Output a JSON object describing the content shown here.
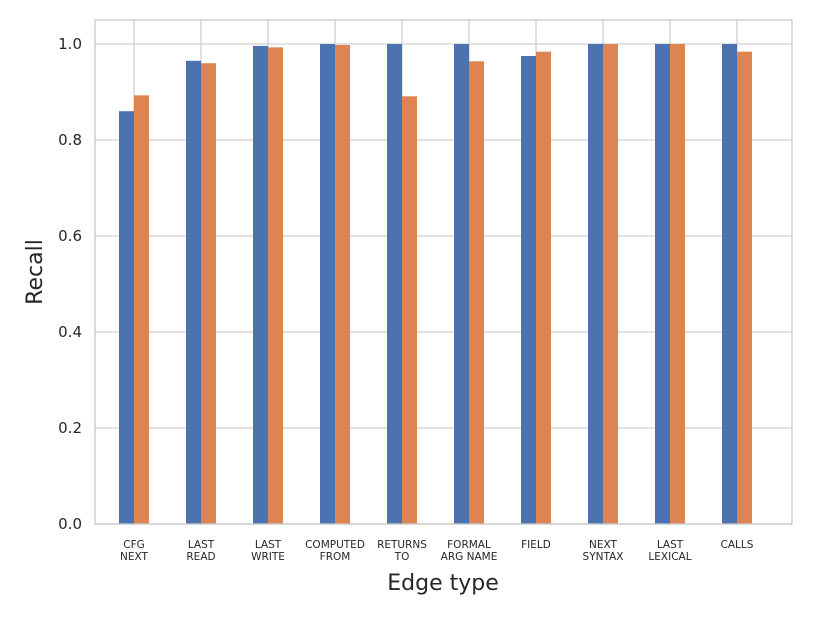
{
  "chart_data": {
    "type": "bar",
    "title": "",
    "xlabel": "Edge type",
    "ylabel": "Recall",
    "ylim": [
      0,
      1.05
    ],
    "yticks": [
      0.0,
      0.2,
      0.4,
      0.6,
      0.8,
      1.0
    ],
    "ytick_labels": [
      "0.0",
      "0.2",
      "0.4",
      "0.6",
      "0.8",
      "1.0"
    ],
    "grid": true,
    "legend": "none",
    "categories": [
      [
        "CFG",
        "NEXT"
      ],
      [
        "LAST",
        "READ"
      ],
      [
        "LAST",
        "WRITE"
      ],
      [
        "COMPUTED",
        "FROM"
      ],
      [
        "RETURNS",
        "TO"
      ],
      [
        "FORMAL",
        "ARG NAME"
      ],
      [
        "FIELD"
      ],
      [
        "NEXT",
        "SYNTAX"
      ],
      [
        "LAST",
        "LEXICAL"
      ],
      [
        "CALLS"
      ]
    ],
    "series": [
      {
        "color": "#4c72b0",
        "values": [
          0.86,
          0.965,
          0.996,
          1.0,
          1.0,
          1.0,
          0.975,
          1.0,
          1.0,
          1.0
        ]
      },
      {
        "color": "#dd8452",
        "values": [
          0.893,
          0.96,
          0.993,
          0.998,
          0.891,
          0.964,
          0.984,
          1.0,
          1.0,
          0.984
        ]
      }
    ]
  }
}
